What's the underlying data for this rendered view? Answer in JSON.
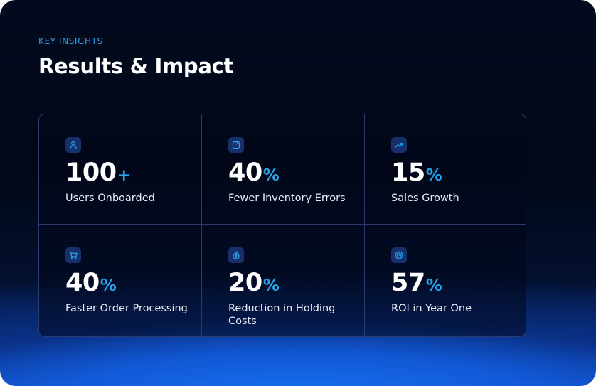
{
  "header": {
    "eyebrow": "KEY INSIGHTS",
    "title": "Results & Impact"
  },
  "colors": {
    "accent": "#27a4e8",
    "background": "#020817",
    "glow": "#1459d6",
    "grid_border": "#2b3b6e",
    "icon_bg": "#17306b"
  },
  "metrics": [
    {
      "icon": "user-icon",
      "value": "100",
      "suffix": "+",
      "label": "Users Onboarded"
    },
    {
      "icon": "box-icon",
      "value": "40",
      "suffix": "%",
      "label": "Fewer Inventory Errors"
    },
    {
      "icon": "trend-up-icon",
      "value": "15",
      "suffix": "%",
      "label": "Sales Growth"
    },
    {
      "icon": "cart-icon",
      "value": "40",
      "suffix": "%",
      "label": "Faster Order Processing"
    },
    {
      "icon": "money-bag-icon",
      "value": "20",
      "suffix": "%",
      "label": "Reduction in Holding Costs"
    },
    {
      "icon": "coin-icon",
      "value": "57",
      "suffix": "%",
      "label": "ROI in Year One"
    }
  ]
}
